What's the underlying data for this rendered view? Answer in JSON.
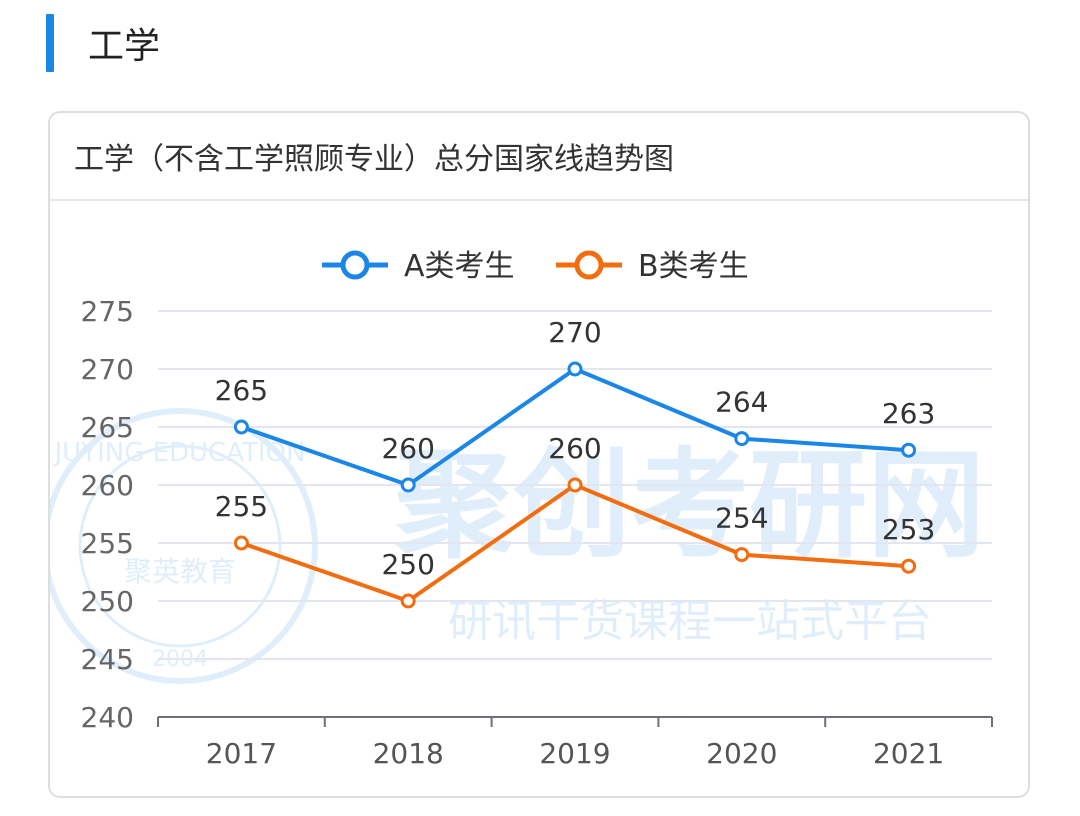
{
  "section": {
    "title": "工学"
  },
  "card": {
    "title": "工学（不含工学照顾专业）总分国家线趋势图"
  },
  "watermark": {
    "main": "聚创考研网",
    "sub": "研讯干货课程一站式平台",
    "seal_text": "JUYING EDUCATION",
    "seal_name": "聚英教育",
    "seal_year": "2004"
  },
  "chart_data": {
    "type": "line",
    "categories": [
      "2017",
      "2018",
      "2019",
      "2020",
      "2021"
    ],
    "series": [
      {
        "name": "A类考生",
        "values": [
          265,
          260,
          270,
          264,
          263
        ],
        "color": "#1a86e8"
      },
      {
        "name": "B类考生",
        "values": [
          255,
          250,
          260,
          254,
          253
        ],
        "color": "#f26d10"
      }
    ],
    "ylim": [
      240,
      275
    ],
    "yticks": [
      240,
      245,
      250,
      255,
      260,
      265,
      270,
      275
    ],
    "grid": true,
    "legend": "top-center",
    "data_labels": true
  }
}
